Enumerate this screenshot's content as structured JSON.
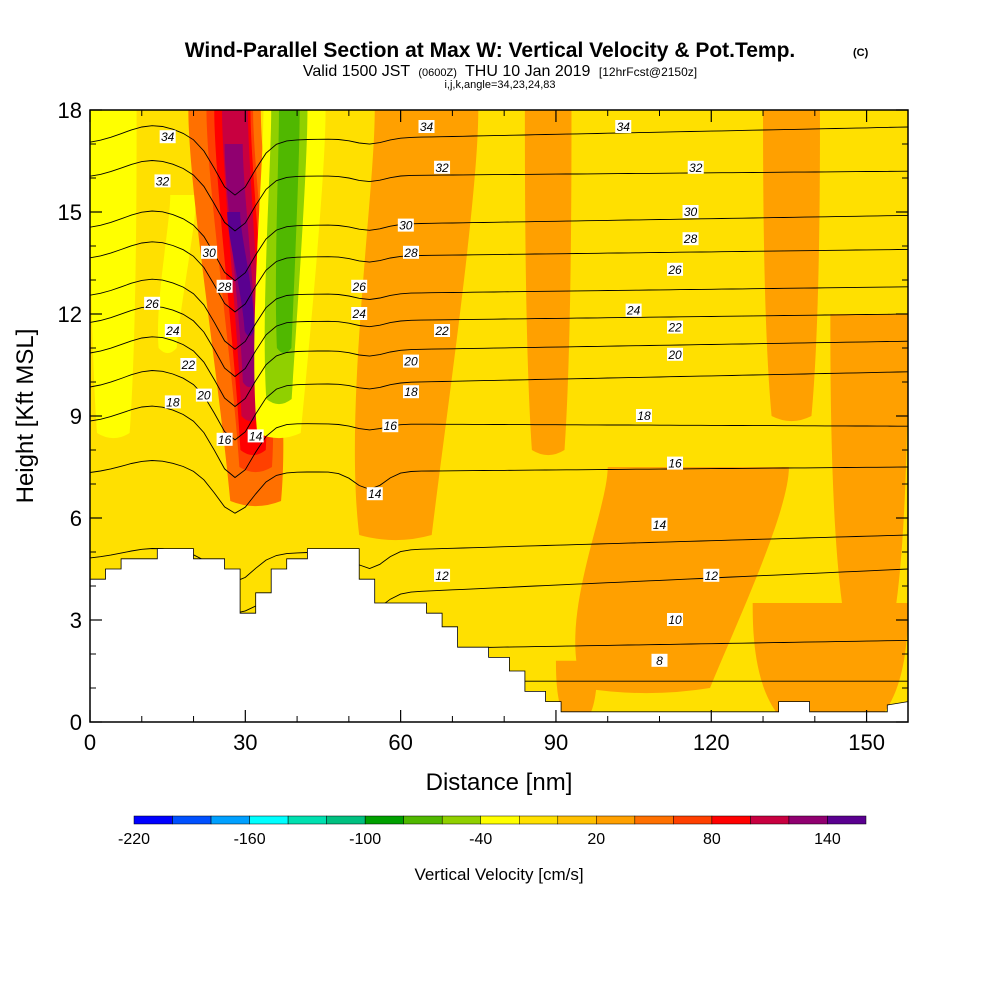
{
  "chart_data": {
    "type": "heatmap",
    "title": "Wind-Parallel Section at Max W: Vertical Velocity & Pot.Temp.",
    "title_unit": "(C)",
    "subtitle_main": "Valid 1500 JST",
    "subtitle_z": "(0600Z)",
    "subtitle_date": "THU 10 Jan 2019",
    "subtitle_fcst": "[12hrFcst@2150z]",
    "subtitle_grid": "i,j,k,angle=34,23,24,83",
    "xlabel": "Distance [nm]",
    "ylabel": "Height [Kft MSL]",
    "xlim": [
      0,
      158
    ],
    "ylim": [
      0,
      18
    ],
    "xticks": [
      "0",
      "30",
      "60",
      "90",
      "120",
      "150"
    ],
    "xtick_values": [
      0,
      30,
      60,
      90,
      120,
      150
    ],
    "yticks": [
      "0",
      "3",
      "6",
      "9",
      "12",
      "15",
      "18"
    ],
    "ytick_values": [
      0,
      3,
      6,
      9,
      12,
      15,
      18
    ],
    "terrain": [
      [
        0,
        4.2
      ],
      [
        3,
        4.2
      ],
      [
        3,
        4.5
      ],
      [
        6,
        4.5
      ],
      [
        6,
        4.8
      ],
      [
        13,
        4.8
      ],
      [
        13,
        5.1
      ],
      [
        20,
        5.1
      ],
      [
        20,
        4.8
      ],
      [
        26,
        4.8
      ],
      [
        26,
        4.5
      ],
      [
        29,
        4.5
      ],
      [
        29,
        3.2
      ],
      [
        32,
        3.2
      ],
      [
        32,
        3.8
      ],
      [
        35,
        3.8
      ],
      [
        35,
        4.5
      ],
      [
        38,
        4.5
      ],
      [
        38,
        4.8
      ],
      [
        42,
        4.8
      ],
      [
        42,
        5.1
      ],
      [
        52,
        5.1
      ],
      [
        52,
        4.2
      ],
      [
        55,
        4.2
      ],
      [
        55,
        3.5
      ],
      [
        65,
        3.5
      ],
      [
        65,
        3.2
      ],
      [
        68,
        3.2
      ],
      [
        68,
        2.8
      ],
      [
        71,
        2.8
      ],
      [
        71,
        2.2
      ],
      [
        77,
        2.2
      ],
      [
        77,
        1.9
      ],
      [
        81,
        1.9
      ],
      [
        81,
        1.5
      ],
      [
        84,
        1.5
      ],
      [
        84,
        0.9
      ],
      [
        88,
        0.9
      ],
      [
        88,
        0.6
      ],
      [
        91,
        0.6
      ],
      [
        91,
        0.3
      ],
      [
        133,
        0.3
      ],
      [
        133,
        0.6
      ],
      [
        139,
        0.6
      ],
      [
        139,
        0.3
      ],
      [
        154,
        0.3
      ],
      [
        154,
        0.5
      ],
      [
        158,
        0.6
      ]
    ],
    "theta_levels": [
      {
        "level": 8,
        "y0": 1.2,
        "y1": 1.2
      },
      {
        "level": 10,
        "y0": 2.0,
        "y1": 2.4
      },
      {
        "level": 12,
        "y0": 3.4,
        "y1": 4.5
      },
      {
        "level": 14,
        "y0": 4.8,
        "y1": 5.5
      },
      {
        "level": 16,
        "y0": 7.3,
        "y1": 7.5
      },
      {
        "level": 18,
        "y0": 8.8,
        "y1": 8.7
      },
      {
        "level": 20,
        "y0": 9.8,
        "y1": 10.3
      },
      {
        "level": 22,
        "y0": 10.8,
        "y1": 11.2
      },
      {
        "level": 24,
        "y0": 11.7,
        "y1": 12.0
      },
      {
        "level": 26,
        "y0": 12.5,
        "y1": 12.8
      },
      {
        "level": 28,
        "y0": 13.6,
        "y1": 13.9
      },
      {
        "level": 30,
        "y0": 14.5,
        "y1": 14.9
      },
      {
        "level": 32,
        "y0": 16.0,
        "y1": 16.2
      },
      {
        "level": 34,
        "y0": 17.0,
        "y1": 17.5
      }
    ],
    "contour_labels": [
      {
        "text": "34",
        "x": 15,
        "y": 17.2
      },
      {
        "text": "32",
        "x": 14,
        "y": 15.9
      },
      {
        "text": "30",
        "x": 23,
        "y": 13.8
      },
      {
        "text": "28",
        "x": 26,
        "y": 12.8
      },
      {
        "text": "26",
        "x": 12,
        "y": 12.3
      },
      {
        "text": "24",
        "x": 16,
        "y": 11.5
      },
      {
        "text": "22",
        "x": 19,
        "y": 10.5
      },
      {
        "text": "20",
        "x": 22,
        "y": 9.6
      },
      {
        "text": "18",
        "x": 16,
        "y": 9.4
      },
      {
        "text": "16",
        "x": 26,
        "y": 8.3
      },
      {
        "text": "14",
        "x": 32,
        "y": 8.4
      },
      {
        "text": "34",
        "x": 65,
        "y": 17.5
      },
      {
        "text": "32",
        "x": 68,
        "y": 16.3
      },
      {
        "text": "30",
        "x": 61,
        "y": 14.6
      },
      {
        "text": "28",
        "x": 62,
        "y": 13.8
      },
      {
        "text": "26",
        "x": 52,
        "y": 12.8
      },
      {
        "text": "24",
        "x": 52,
        "y": 12.0
      },
      {
        "text": "22",
        "x": 68,
        "y": 11.5
      },
      {
        "text": "20",
        "x": 62,
        "y": 10.6
      },
      {
        "text": "18",
        "x": 62,
        "y": 9.7
      },
      {
        "text": "16",
        "x": 58,
        "y": 8.7
      },
      {
        "text": "14",
        "x": 55,
        "y": 6.7
      },
      {
        "text": "12",
        "x": 68,
        "y": 4.3
      },
      {
        "text": "34",
        "x": 103,
        "y": 17.5
      },
      {
        "text": "32",
        "x": 117,
        "y": 16.3
      },
      {
        "text": "30",
        "x": 116,
        "y": 15.0
      },
      {
        "text": "28",
        "x": 116,
        "y": 14.2
      },
      {
        "text": "26",
        "x": 113,
        "y": 13.3
      },
      {
        "text": "24",
        "x": 105,
        "y": 12.1
      },
      {
        "text": "22",
        "x": 113,
        "y": 11.6
      },
      {
        "text": "20",
        "x": 113,
        "y": 10.8
      },
      {
        "text": "18",
        "x": 107,
        "y": 9.0
      },
      {
        "text": "16",
        "x": 113,
        "y": 7.6
      },
      {
        "text": "14",
        "x": 110,
        "y": 5.8
      },
      {
        "text": "12",
        "x": 120,
        "y": 4.3
      },
      {
        "text": "10",
        "x": 113,
        "y": 3.0
      },
      {
        "text": "8",
        "x": 110,
        "y": 1.8
      }
    ],
    "w_features": [
      {
        "w": -60,
        "x0": 3,
        "x1": 5,
        "ybot": 9.5,
        "ytop": 18,
        "lean": 0
      },
      {
        "w": -40,
        "x0": 0,
        "x1": 9,
        "ybot": 8.5,
        "ytop": 18,
        "lean": 0
      },
      {
        "w": -40,
        "x0": 14,
        "x1": 19,
        "ybot": 11,
        "ytop": 15.5,
        "lean": 3
      },
      {
        "w": 40,
        "x0": 22,
        "x1": 36,
        "ybot": 6.5,
        "ytop": 18,
        "lean": -6
      },
      {
        "w": 60,
        "x0": 25,
        "x1": 34,
        "ybot": 7.5,
        "ytop": 18,
        "lean": -5
      },
      {
        "w": 80,
        "x0": 26,
        "x1": 33,
        "ybot": 8,
        "ytop": 18,
        "lean": -4
      },
      {
        "w": 100,
        "x0": 27,
        "x1": 32,
        "ybot": 9,
        "ytop": 18,
        "lean": -3
      },
      {
        "w": 120,
        "x0": 27.5,
        "x1": 31,
        "ybot": 10,
        "ytop": 17,
        "lean": -3
      },
      {
        "w": 140,
        "x0": 28,
        "x1": 30.5,
        "ybot": 11.5,
        "ytop": 15,
        "lean": -3
      },
      {
        "w": -40,
        "x0": 32,
        "x1": 44,
        "ybot": 8.5,
        "ytop": 18,
        "lean": 3
      },
      {
        "w": -60,
        "x0": 34,
        "x1": 41,
        "ybot": 9.5,
        "ytop": 18,
        "lean": 2
      },
      {
        "w": -80,
        "x0": 36,
        "x1": 40,
        "ybot": 11,
        "ytop": 18,
        "lean": 1
      },
      {
        "w": 20,
        "x0": 52,
        "x1": 72,
        "ybot": 5.5,
        "ytop": 18,
        "lean": 6
      },
      {
        "w": 20,
        "x0": 84,
        "x1": 93,
        "ybot": 8,
        "ytop": 18,
        "lean": 0
      },
      {
        "w": 20,
        "x0": 95,
        "x1": 130,
        "ybot": 1.0,
        "ytop": 7.5,
        "lean": 10
      },
      {
        "w": 20,
        "x0": 128,
        "x1": 158,
        "ybot": 0.3,
        "ytop": 3.5,
        "lean": 0
      },
      {
        "w": 20,
        "x0": 130,
        "x1": 141,
        "ybot": 9,
        "ytop": 18,
        "lean": 0
      },
      {
        "w": 20,
        "x0": 143,
        "x1": 158,
        "ybot": 3.5,
        "ytop": 12,
        "lean": 0
      },
      {
        "w": 20,
        "x0": 90,
        "x1": 98,
        "ybot": 0.3,
        "ytop": 1.8,
        "lean": 0
      }
    ],
    "colorbar": {
      "label": "Vertical Velocity [cm/s]",
      "levels": [
        -220,
        -200,
        -180,
        -160,
        -140,
        -120,
        -100,
        -80,
        -60,
        -40,
        -20,
        0,
        20,
        40,
        60,
        80,
        100,
        120,
        140,
        160
      ],
      "colors": [
        "#0000ff",
        "#0050ff",
        "#00a0ff",
        "#00ffff",
        "#00e0b0",
        "#00c080",
        "#00a000",
        "#50b800",
        "#90d000",
        "#ffff00",
        "#ffe000",
        "#ffc000",
        "#ffa000",
        "#ff7000",
        "#ff4000",
        "#ff0000",
        "#c80040",
        "#900070",
        "#5a0090"
      ],
      "tick_labels": [
        "-220",
        "-160",
        "-100",
        "-40",
        "20",
        "80",
        "140"
      ],
      "tick_values": [
        -220,
        -160,
        -100,
        -40,
        20,
        80,
        140
      ]
    }
  }
}
